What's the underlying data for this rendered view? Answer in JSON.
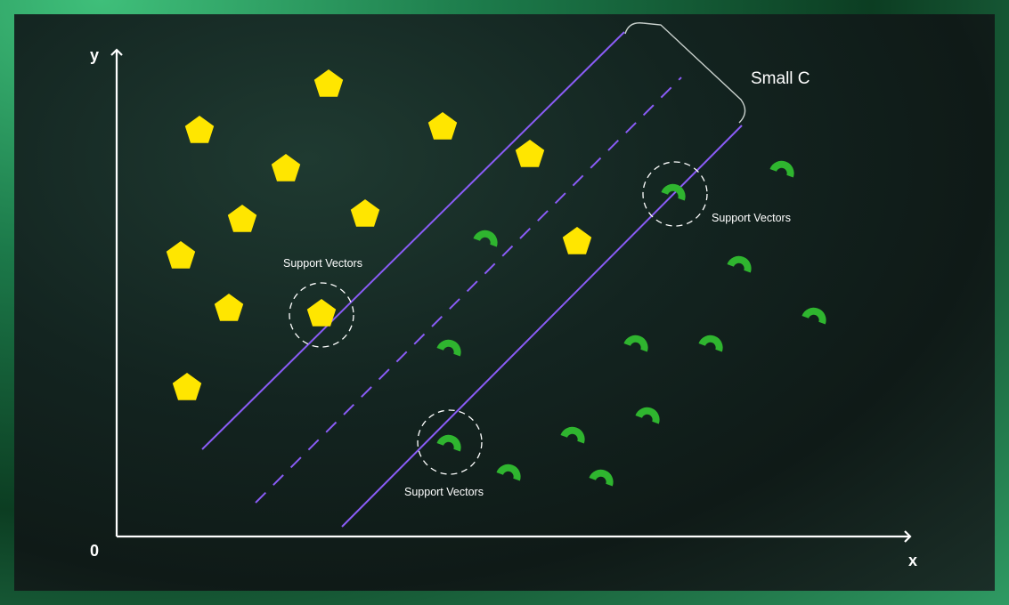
{
  "axes": {
    "origin_label": "0",
    "x_label": "x",
    "y_label": "y"
  },
  "annotations": {
    "margin_label": "Small C",
    "support_vectors_label_1": "Support Vectors",
    "support_vectors_label_2": "Support Vectors",
    "support_vectors_label_3": "Support Vectors"
  },
  "colors": {
    "background_accent": "#1c7a4a",
    "class_a": "#ffe600",
    "class_b": "#2fb52f",
    "hyperplane": "#8a5cf6",
    "axes": "#ffffff"
  },
  "class_a_icon": "pentagon-icon",
  "class_b_icon": "arc-icon"
}
